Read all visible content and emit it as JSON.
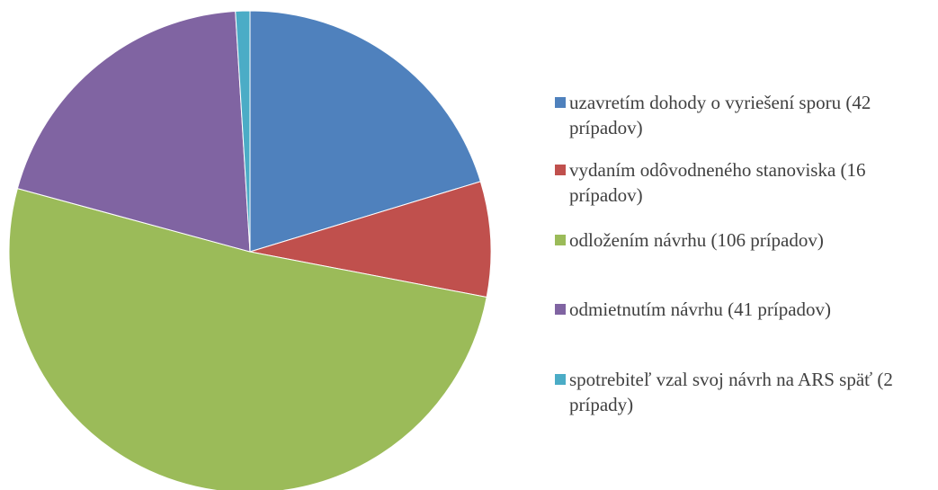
{
  "chart_data": {
    "type": "pie",
    "categories": [
      "uzavretím dohody o vyriešení sporu (42 prípadov)",
      "vydaním odôvodneného stanoviska (16 prípadov)",
      "odložením návrhu (106 prípadov)",
      "odmietnutím návrhu (41 prípadov)",
      "spotrebiteľ vzal svoj návrh na ARS späť (2 prípady)"
    ],
    "values": [
      42,
      16,
      106,
      41,
      2
    ],
    "colors": [
      "#4f81bd",
      "#c0504d",
      "#9bbb59",
      "#8064a2",
      "#4bacc6"
    ],
    "legend": "right"
  }
}
